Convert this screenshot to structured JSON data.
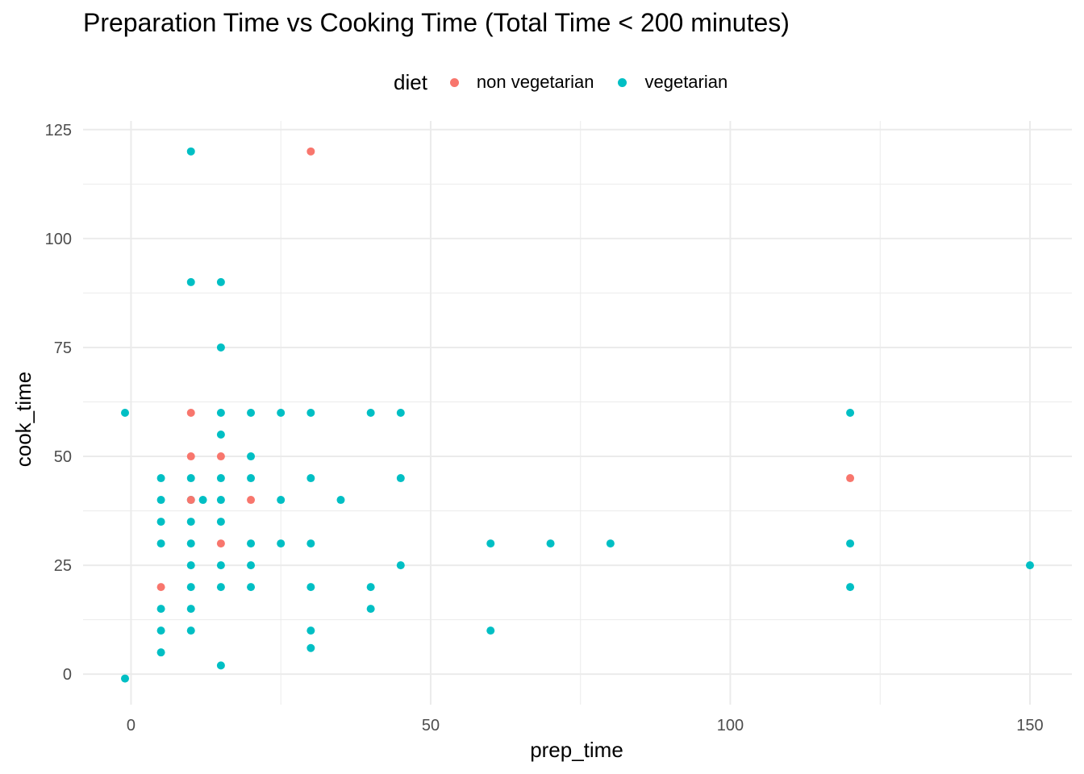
{
  "chart_data": {
    "type": "scatter",
    "title": "Preparation Time vs Cooking Time (Total Time < 200 minutes)",
    "xlabel": "prep_time",
    "ylabel": "cook_time",
    "xlim": [
      -8,
      157
    ],
    "ylim": [
      -7,
      127
    ],
    "x_ticks": [
      0,
      50,
      100,
      150
    ],
    "y_ticks": [
      0,
      25,
      50,
      75,
      100,
      125
    ],
    "grid": true,
    "legend": {
      "title": "diet",
      "placement": "top",
      "entries": [
        {
          "label": "non vegetarian",
          "color": "#F8766D"
        },
        {
          "label": "vegetarian",
          "color": "#00BFC4"
        }
      ]
    },
    "series": [
      {
        "name": "vegetarian",
        "color": "#00BFC4",
        "points": [
          [
            -1,
            60
          ],
          [
            -1,
            -1
          ],
          [
            5,
            45
          ],
          [
            5,
            40
          ],
          [
            5,
            35
          ],
          [
            5,
            30
          ],
          [
            5,
            15
          ],
          [
            5,
            10
          ],
          [
            5,
            5
          ],
          [
            10,
            120
          ],
          [
            10,
            90
          ],
          [
            10,
            45
          ],
          [
            10,
            40
          ],
          [
            10,
            35
          ],
          [
            10,
            30
          ],
          [
            10,
            25
          ],
          [
            10,
            20
          ],
          [
            10,
            15
          ],
          [
            10,
            10
          ],
          [
            12,
            40
          ],
          [
            15,
            90
          ],
          [
            15,
            75
          ],
          [
            15,
            60
          ],
          [
            15,
            55
          ],
          [
            15,
            45
          ],
          [
            15,
            40
          ],
          [
            15,
            35
          ],
          [
            15,
            25
          ],
          [
            15,
            20
          ],
          [
            15,
            2
          ],
          [
            20,
            60
          ],
          [
            20,
            50
          ],
          [
            20,
            45
          ],
          [
            20,
            30
          ],
          [
            20,
            25
          ],
          [
            20,
            20
          ],
          [
            25,
            60
          ],
          [
            25,
            40
          ],
          [
            25,
            30
          ],
          [
            30,
            60
          ],
          [
            30,
            45
          ],
          [
            30,
            30
          ],
          [
            30,
            20
          ],
          [
            30,
            10
          ],
          [
            30,
            6
          ],
          [
            35,
            40
          ],
          [
            40,
            60
          ],
          [
            40,
            20
          ],
          [
            40,
            15
          ],
          [
            45,
            60
          ],
          [
            45,
            45
          ],
          [
            45,
            25
          ],
          [
            60,
            30
          ],
          [
            60,
            10
          ],
          [
            70,
            30
          ],
          [
            80,
            30
          ],
          [
            120,
            60
          ],
          [
            120,
            30
          ],
          [
            120,
            20
          ],
          [
            150,
            25
          ]
        ]
      },
      {
        "name": "non vegetarian",
        "color": "#F8766D",
        "points": [
          [
            5,
            20
          ],
          [
            10,
            60
          ],
          [
            10,
            50
          ],
          [
            10,
            40
          ],
          [
            15,
            50
          ],
          [
            15,
            30
          ],
          [
            20,
            40
          ],
          [
            30,
            120
          ],
          [
            120,
            45
          ]
        ]
      }
    ]
  }
}
